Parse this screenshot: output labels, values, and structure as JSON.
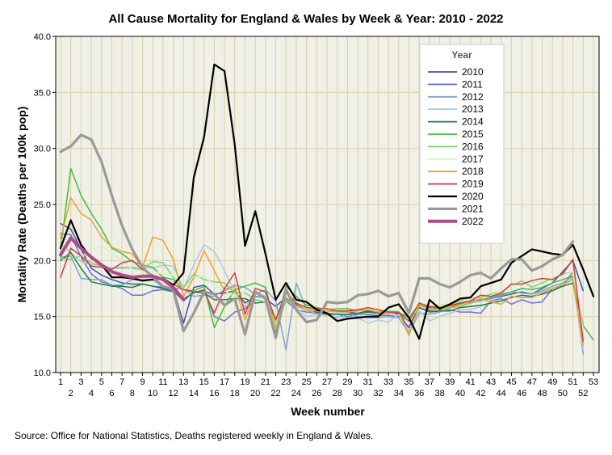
{
  "chart_data": {
    "type": "line",
    "title": "All Cause Mortality for England & Wales by Week & Year: 2010 - 2022",
    "xlabel": "Week number",
    "ylabel": "Mortality Rate (Deaths per 100k pop)",
    "xlim": [
      1,
      53
    ],
    "ylim": [
      10,
      40
    ],
    "y_ticks": [
      10,
      15,
      20,
      25,
      30,
      35,
      40
    ],
    "y_tick_labels": [
      "10.0",
      "15.0",
      "20.0",
      "25.0",
      "30.0",
      "35.0",
      "40.0"
    ],
    "x_ticks": [
      1,
      2,
      3,
      4,
      5,
      6,
      7,
      8,
      9,
      10,
      11,
      12,
      13,
      14,
      15,
      16,
      17,
      18,
      19,
      20,
      21,
      22,
      23,
      24,
      25,
      26,
      27,
      28,
      29,
      30,
      31,
      32,
      33,
      34,
      35,
      36,
      37,
      38,
      39,
      40,
      41,
      42,
      43,
      44,
      45,
      46,
      47,
      48,
      49,
      50,
      51,
      52,
      53
    ],
    "grid": true,
    "legend_title": "Year",
    "legend_position": "top-right",
    "series": [
      {
        "name": "2010",
        "color": "#3f52a8",
        "width": 1.5,
        "values": [
          23.3,
          22.8,
          21.0,
          19.3,
          18.7,
          18.3,
          18.0,
          17.9,
          17.9,
          17.7,
          17.6,
          17.5,
          14.4,
          17.6,
          17.8,
          17.0,
          17.1,
          17.3,
          16.2,
          16.8,
          16.6,
          15.9,
          16.7,
          16.1,
          15.8,
          15.7,
          15.5,
          15.6,
          15.4,
          15.3,
          15.5,
          15.4,
          15.4,
          15.2,
          14.0,
          16.0,
          15.8,
          15.8,
          16.0,
          16.2,
          16.4,
          16.5,
          16.6,
          16.8,
          17.0,
          17.2,
          17.0,
          17.5,
          18.0,
          19.0,
          20.0,
          17.3,
          null
        ]
      },
      {
        "name": "2011",
        "color": "#6a6fe0",
        "width": 1.5,
        "values": [
          22.4,
          22.3,
          20.3,
          18.8,
          18.1,
          17.8,
          17.5,
          16.9,
          16.9,
          17.3,
          17.4,
          17.2,
          16.6,
          17.1,
          17.4,
          15.0,
          14.6,
          15.4,
          15.7,
          16.5,
          16.3,
          14.3,
          16.4,
          15.6,
          15.4,
          15.3,
          15.3,
          15.2,
          15.0,
          15.2,
          15.2,
          15.1,
          15.1,
          15.0,
          14.6,
          15.8,
          15.5,
          15.5,
          15.6,
          15.4,
          15.4,
          15.3,
          16.4,
          16.6,
          16.1,
          16.5,
          16.2,
          16.3,
          17.5,
          17.7,
          19.0,
          null,
          null
        ]
      },
      {
        "name": "2012",
        "color": "#7fa3d6",
        "width": 1.5,
        "values": [
          20.3,
          20.4,
          18.4,
          18.3,
          18.3,
          17.8,
          17.8,
          18.3,
          18.3,
          18.3,
          17.6,
          17.5,
          17.5,
          16.8,
          16.9,
          16.8,
          17.4,
          17.8,
          17.6,
          17.0,
          17.4,
          16.4,
          12.0,
          18.0,
          15.6,
          15.2,
          15.2,
          14.9,
          15.2,
          15.0,
          14.9,
          14.9,
          15.0,
          14.9,
          13.5,
          15.3,
          15.2,
          15.4,
          15.8,
          15.9,
          16.2,
          16.4,
          16.6,
          16.9,
          17.2,
          17.1,
          17.0,
          17.3,
          17.7,
          18.0,
          18.6,
          11.6,
          null
        ]
      },
      {
        "name": "2013",
        "color": "#a9c9e8",
        "width": 1.5,
        "values": [
          21.5,
          20.7,
          19.9,
          19.6,
          19.6,
          19.3,
          19.3,
          19.4,
          19.4,
          19.3,
          19.6,
          19.5,
          17.5,
          19.6,
          21.4,
          20.8,
          19.1,
          17.2,
          15.8,
          17.2,
          16.8,
          14.6,
          16.5,
          15.8,
          15.0,
          15.2,
          15.1,
          15.0,
          14.8,
          14.9,
          14.4,
          14.7,
          14.5,
          15.2,
          13.7,
          15.5,
          14.6,
          15.0,
          15.3,
          15.6,
          15.6,
          15.9,
          16.2,
          16.4,
          16.8,
          16.7,
          16.8,
          17.2,
          17.5,
          17.9,
          18.2,
          12.0,
          null
        ]
      },
      {
        "name": "2014",
        "color": "#1e8040",
        "width": 1.5,
        "values": [
          20.0,
          20.7,
          19.3,
          18.1,
          17.9,
          17.7,
          17.7,
          17.6,
          17.9,
          17.7,
          17.5,
          17.3,
          16.4,
          17.2,
          17.1,
          16.5,
          16.5,
          16.6,
          16.6,
          16.2,
          16.3,
          13.7,
          16.6,
          16.0,
          15.7,
          15.4,
          15.2,
          15.2,
          15.2,
          15.3,
          15.4,
          15.3,
          15.3,
          15.3,
          14.5,
          15.8,
          15.4,
          15.5,
          15.5,
          15.8,
          15.9,
          16.0,
          16.2,
          16.4,
          16.7,
          16.9,
          16.8,
          17.0,
          17.3,
          17.7,
          18.0,
          14.1,
          null
        ]
      },
      {
        "name": "2015",
        "color": "#3ec03e",
        "width": 1.5,
        "values": [
          21.0,
          28.2,
          25.8,
          24.2,
          22.8,
          21.1,
          20.6,
          19.9,
          19.6,
          19.4,
          18.5,
          18.3,
          17.4,
          17.3,
          17.7,
          14.0,
          15.9,
          17.4,
          17.7,
          18.0,
          17.6,
          14.1,
          17.7,
          16.8,
          16.0,
          15.8,
          15.6,
          15.7,
          15.7,
          15.5,
          15.6,
          15.4,
          15.5,
          15.4,
          14.9,
          16.1,
          15.6,
          15.8,
          15.9,
          16.1,
          16.4,
          16.5,
          16.7,
          17.0,
          17.2,
          17.5,
          17.4,
          17.6,
          18.0,
          18.3,
          18.6,
          14.2,
          12.9
        ]
      },
      {
        "name": "2016",
        "color": "#79d479",
        "width": 1.5,
        "values": [
          20.2,
          20.1,
          20.4,
          19.8,
          19.5,
          19.3,
          19.4,
          19.3,
          19.2,
          19.9,
          19.8,
          18.5,
          17.6,
          18.8,
          18.3,
          18.1,
          18.0,
          17.1,
          17.1,
          16.5,
          16.3,
          13.8,
          16.5,
          15.9,
          15.6,
          15.6,
          15.5,
          15.4,
          15.4,
          15.5,
          15.7,
          15.6,
          15.5,
          15.5,
          14.4,
          16.0,
          15.7,
          16.0,
          16.1,
          16.4,
          16.7,
          16.7,
          17.0,
          17.3,
          17.7,
          18.2,
          17.6,
          18.0,
          18.4,
          18.8,
          19.0,
          13.9,
          null
        ]
      },
      {
        "name": "2017",
        "color": "#d6f0c6",
        "width": 1.5,
        "values": [
          21.9,
          21.3,
          20.3,
          21.0,
          21.3,
          20.7,
          20.0,
          19.2,
          19.0,
          19.0,
          18.8,
          18.7,
          17.4,
          18.5,
          18.6,
          17.8,
          17.3,
          16.8,
          17.2,
          16.7,
          16.6,
          14.2,
          16.8,
          16.2,
          15.7,
          15.7,
          15.6,
          15.6,
          15.5,
          15.4,
          15.7,
          15.6,
          15.6,
          15.5,
          14.4,
          16.2,
          15.9,
          16.0,
          16.2,
          16.5,
          16.7,
          16.8,
          17.1,
          17.3,
          17.7,
          18.0,
          18.0,
          18.2,
          18.4,
          18.7,
          19.0,
          13.8,
          null
        ]
      },
      {
        "name": "2018",
        "color": "#f0a030",
        "width": 1.5,
        "values": [
          21.9,
          25.6,
          24.2,
          23.6,
          22.1,
          21.2,
          20.8,
          20.6,
          19.4,
          22.1,
          21.8,
          20.1,
          16.8,
          18.5,
          20.9,
          19.1,
          17.3,
          17.7,
          14.7,
          17.1,
          16.7,
          14.0,
          16.7,
          16.0,
          15.6,
          15.5,
          15.5,
          15.5,
          15.4,
          15.5,
          15.6,
          15.4,
          15.3,
          15.4,
          13.3,
          16.0,
          15.7,
          15.6,
          15.9,
          15.9,
          16.3,
          16.6,
          16.3,
          16.1,
          16.8,
          16.7,
          16.7,
          17.1,
          17.5,
          17.8,
          18.4,
          12.4,
          null
        ]
      },
      {
        "name": "2019",
        "color": "#d43c3c",
        "width": 1.5,
        "values": [
          18.5,
          21.1,
          20.4,
          19.5,
          19.4,
          19.2,
          19.8,
          20.0,
          19.2,
          18.7,
          18.3,
          17.9,
          17.4,
          17.2,
          17.3,
          15.3,
          17.5,
          18.9,
          15.2,
          17.5,
          17.2,
          14.7,
          17.2,
          16.2,
          15.8,
          15.7,
          15.7,
          15.5,
          15.5,
          15.6,
          15.8,
          15.6,
          15.4,
          15.4,
          14.6,
          16.2,
          15.9,
          15.8,
          16.0,
          16.2,
          16.4,
          16.9,
          16.8,
          17.1,
          17.9,
          17.9,
          18.2,
          18.4,
          18.3,
          18.8,
          20.1,
          12.8,
          null
        ]
      },
      {
        "name": "2020",
        "color": "#000000",
        "width": 2.2,
        "values": [
          21.1,
          23.6,
          21.4,
          20.2,
          19.6,
          18.5,
          18.5,
          18.4,
          18.2,
          18.3,
          18.4,
          17.8,
          18.9,
          27.4,
          31.0,
          37.5,
          36.9,
          30.3,
          21.3,
          24.4,
          20.6,
          16.5,
          18.0,
          16.5,
          16.3,
          15.6,
          15.3,
          14.6,
          14.8,
          14.9,
          15.0,
          15.0,
          15.8,
          16.1,
          14.9,
          13.0,
          16.5,
          15.7,
          16.1,
          16.6,
          16.7,
          17.7,
          18.0,
          18.3,
          19.8,
          20.4,
          21.0,
          20.8,
          20.6,
          20.5,
          21.4,
          19.2,
          16.8
        ]
      },
      {
        "name": "2021",
        "color": "#999999",
        "width": 3.2,
        "values": [
          29.7,
          30.2,
          31.2,
          30.8,
          28.8,
          25.8,
          23.1,
          21.0,
          19.4,
          18.5,
          17.7,
          17.4,
          13.7,
          15.3,
          17.2,
          17.0,
          16.0,
          16.6,
          13.4,
          17.2,
          16.6,
          13.1,
          17.4,
          15.6,
          14.5,
          14.7,
          16.3,
          16.2,
          16.3,
          16.9,
          17.0,
          17.3,
          16.8,
          17.1,
          15.3,
          18.4,
          18.4,
          17.9,
          17.6,
          18.1,
          18.7,
          18.9,
          18.4,
          19.3,
          20.1,
          20.1,
          19.1,
          19.5,
          20.1,
          20.5,
          21.7,
          null,
          null
        ]
      },
      {
        "name": "2022",
        "color": "#b04a88",
        "width": 4.0,
        "values": [
          20.5,
          22.0,
          21.1,
          20.3,
          19.6,
          19.0,
          18.7,
          18.5,
          18.6,
          18.6,
          18.3,
          17.6,
          16.5,
          null,
          null,
          null,
          null,
          null,
          null,
          null,
          null,
          null,
          null,
          null,
          null,
          null,
          null,
          null,
          null,
          null,
          null,
          null,
          null,
          null,
          null,
          null,
          null,
          null,
          null,
          null,
          null,
          null,
          null,
          null,
          null,
          null,
          null,
          null,
          null,
          null,
          null,
          null,
          null
        ]
      }
    ]
  },
  "footer": {
    "source": "Source: Office for National Statistics, Deaths registered weekly in England & Wales."
  }
}
